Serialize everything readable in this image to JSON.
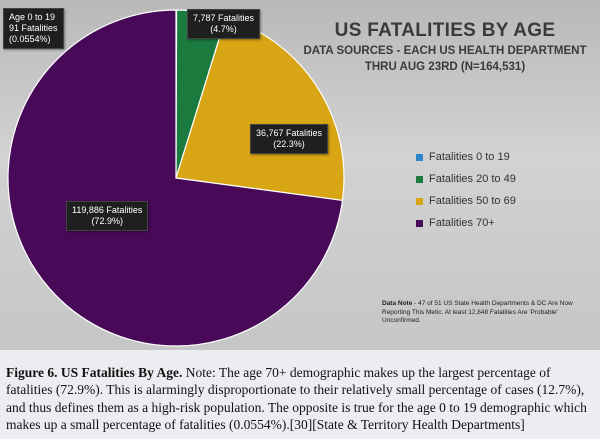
{
  "chart_data": {
    "type": "pie",
    "title": "US FATALITIES BY AGE",
    "subtitle_line1": "DATA SOURCES - EACH US HEALTH DEPARTMENT",
    "subtitle_line2": "THRU AUG 23RD (N=164,531)",
    "slices": [
      {
        "legend": "Fatalities 0 to 19",
        "value": 91,
        "percent": 0.0554,
        "color": "#2a86c9",
        "label_lines": [
          "Age 0 to 19",
          "91 Fatalities",
          "(0.0554%)"
        ]
      },
      {
        "legend": "Fatalities 20 to 49",
        "value": 7787,
        "percent": 4.7,
        "color": "#1b7a3e",
        "label_lines": [
          "7,787 Fatalities",
          "(4.7%)"
        ]
      },
      {
        "legend": "Fatalities 50 to 69",
        "value": 36767,
        "percent": 22.3,
        "color": "#d8a515",
        "label_lines": [
          "36,767 Fatalities",
          "(22.3%)"
        ]
      },
      {
        "legend": "Fatalities 70+",
        "value": 119886,
        "percent": 72.9,
        "color": "#480a58",
        "label_lines": [
          "119,886 Fatalities",
          "(72.9%)"
        ]
      }
    ],
    "legend_position": "right",
    "note_bold": "Data Note",
    "note_text": " - 47 of 51 US State Health Departments & DC Are Now Reporting This Metic. At least 12,848 Fatalities Are 'Probable' Unconfirmed."
  },
  "caption": {
    "label": "Figure 6. US Fatalities By Age.",
    "text": "  Note: The age 70+ demographic makes up the largest percentage of fatalities (72.9%). This is alarmingly disproportionate to their relatively small percentage of cases (12.7%), and thus defines them as a high-risk population. The opposite is true for the age 0 to 19 demographic which makes up a small percentage of fatalities (0.0554%).[30][State & Territory Health Departments]"
  }
}
